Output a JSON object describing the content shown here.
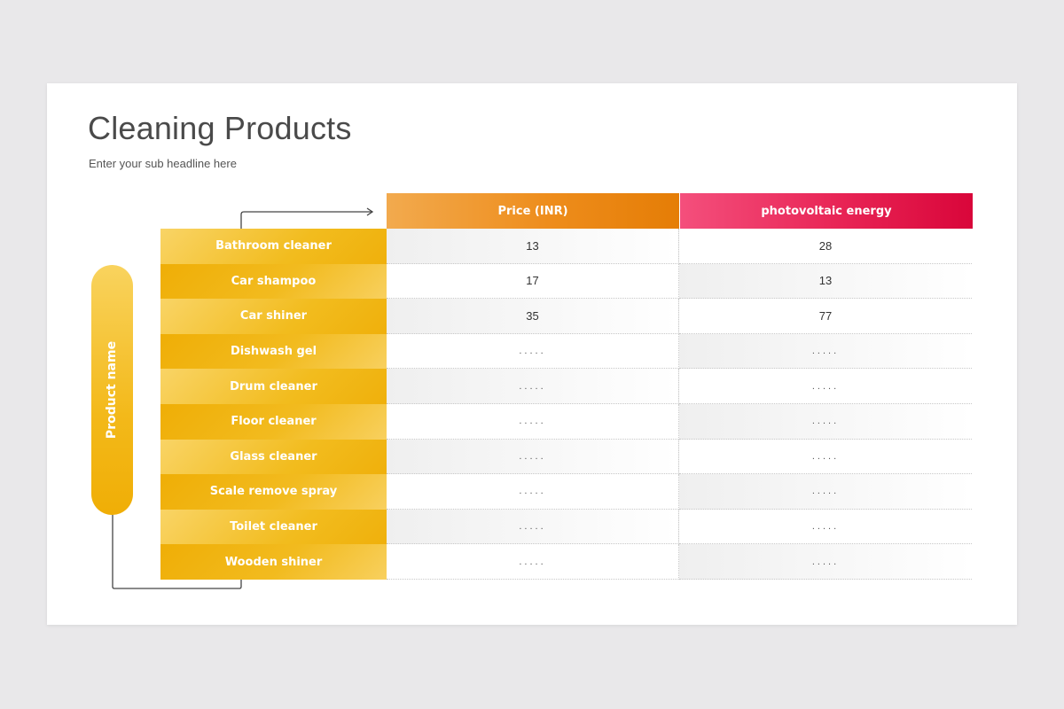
{
  "slide": {
    "title": "Cleaning Products",
    "subtitle": "Enter your sub headline here",
    "row_group_label": "Product name"
  },
  "table": {
    "headers": {
      "price": "Price (INR)",
      "energy": "photovoltaic energy"
    },
    "rows": [
      {
        "name": "Bathroom cleaner",
        "price": "13",
        "energy": "28"
      },
      {
        "name": "Car shampoo",
        "price": "17",
        "energy": "13"
      },
      {
        "name": "Car shiner",
        "price": "35",
        "energy": "77"
      },
      {
        "name": "Dishwash gel",
        "price": ".....",
        "energy": "....."
      },
      {
        "name": "Drum cleaner",
        "price": ".....",
        "energy": "....."
      },
      {
        "name": "Floor cleaner",
        "price": ".....",
        "energy": "....."
      },
      {
        "name": "Glass cleaner",
        "price": ".....",
        "energy": "....."
      },
      {
        "name": "Scale remove spray",
        "price": ".....",
        "energy": "....."
      },
      {
        "name": "Toilet cleaner",
        "price": ".....",
        "energy": "....."
      },
      {
        "name": "Wooden shiner",
        "price": ".....",
        "energy": "....."
      }
    ]
  },
  "colors": {
    "background": "#e9e8ea",
    "product_yellow": "#f2bb1f",
    "price_orange": "#ee8d1c",
    "energy_red": "#e82455"
  }
}
